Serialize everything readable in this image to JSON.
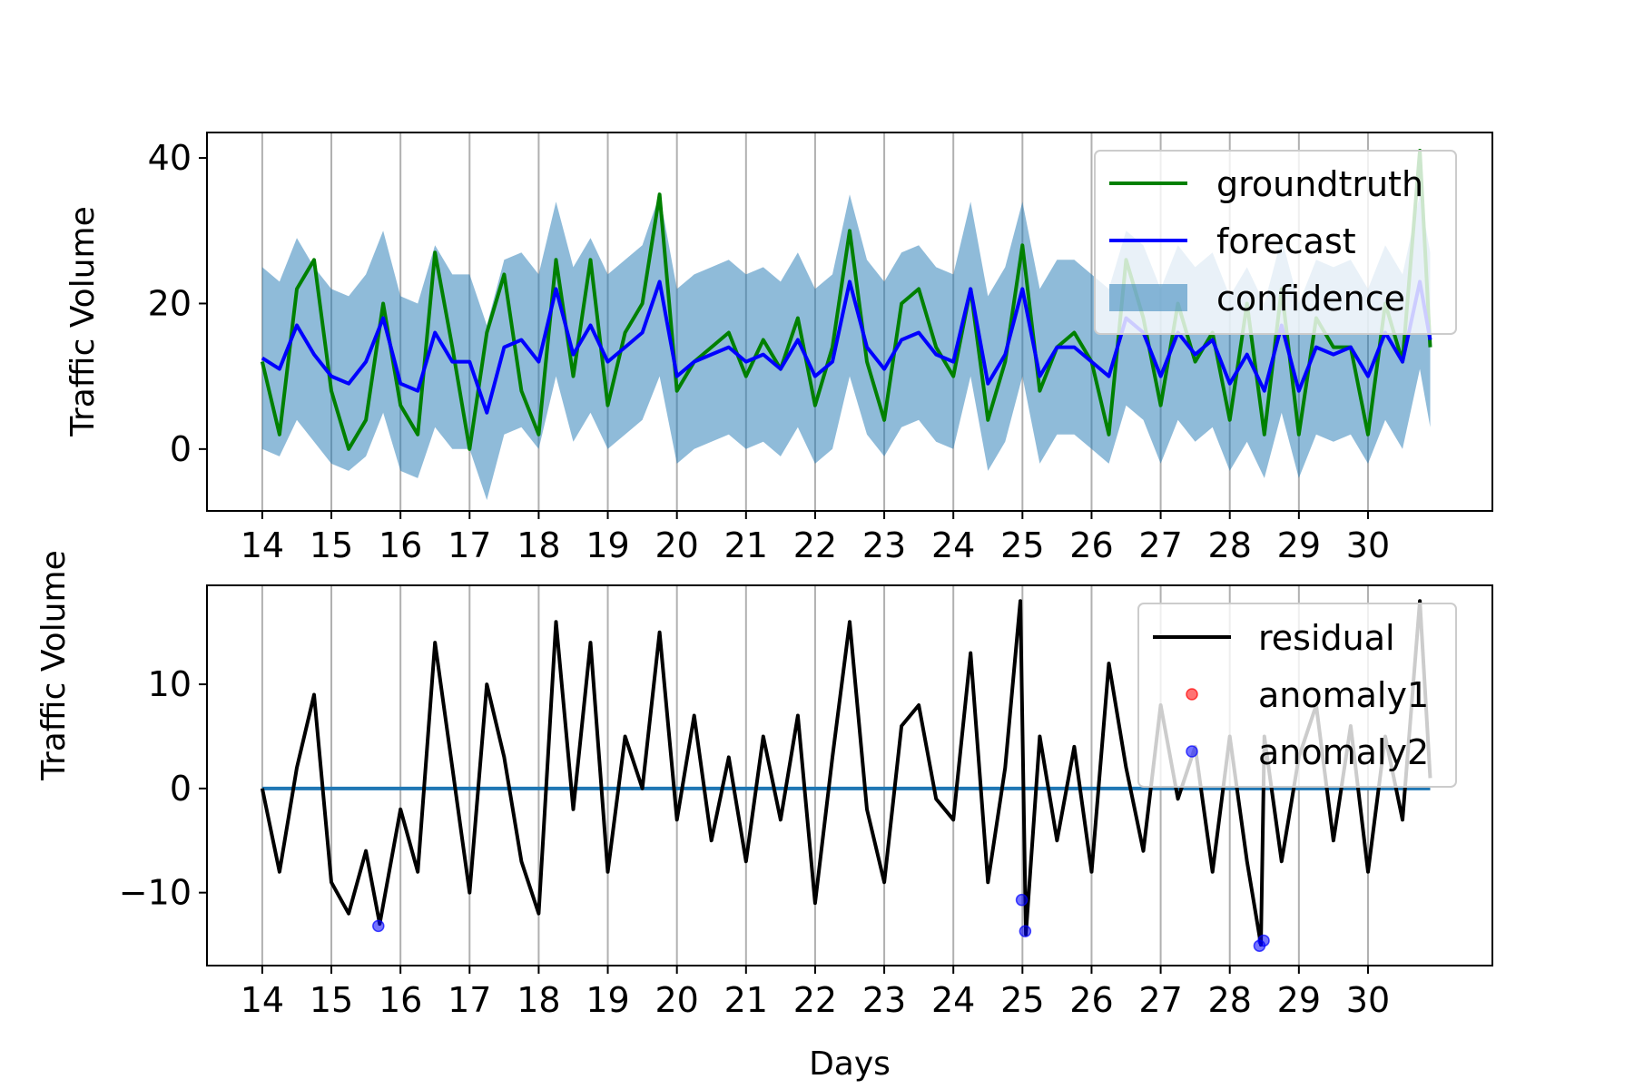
{
  "chart_data": [
    {
      "type": "line",
      "panel": "top",
      "ylabel": "Traffic Volume",
      "xlabel": "",
      "xlim": [
        13.2,
        31.8
      ],
      "ylim": [
        -8.5,
        43.5
      ],
      "x_ticks": [
        14,
        15,
        16,
        17,
        18,
        19,
        20,
        21,
        22,
        23,
        24,
        25,
        26,
        27,
        28,
        29,
        30
      ],
      "y_ticks": [
        0,
        20,
        40
      ],
      "grid": "x",
      "legend_position": "top-right",
      "legend": [
        "groundtruth",
        "forecast",
        "confidence"
      ],
      "colors": {
        "groundtruth": "#008000",
        "forecast": "#0000ff",
        "confidence": "#1f77b4"
      },
      "series": [
        {
          "name": "groundtruth",
          "x": [
            14.0,
            14.25,
            14.5,
            14.75,
            15.0,
            15.25,
            15.5,
            15.75,
            16.0,
            16.25,
            16.5,
            16.75,
            17.0,
            17.25,
            17.5,
            17.75,
            18.0,
            18.25,
            18.5,
            18.75,
            19.0,
            19.25,
            19.5,
            19.75,
            20.0,
            20.25,
            20.5,
            20.75,
            21.0,
            21.25,
            21.5,
            21.75,
            22.0,
            22.25,
            22.5,
            22.75,
            23.0,
            23.25,
            23.5,
            23.75,
            24.0,
            24.25,
            24.5,
            24.75,
            25.0,
            25.25,
            25.5,
            25.75,
            26.0,
            26.25,
            26.5,
            26.75,
            27.0,
            27.25,
            27.5,
            27.75,
            28.0,
            28.25,
            28.5,
            28.75,
            29.0,
            29.25,
            29.5,
            29.75,
            30.0,
            30.25,
            30.5,
            30.75,
            30.9
          ],
          "y": [
            12,
            2,
            22,
            26,
            8,
            0,
            4,
            20,
            6,
            2,
            27,
            14,
            0,
            16,
            24,
            8,
            2,
            26,
            10,
            26,
            6,
            16,
            20,
            35,
            8,
            12,
            14,
            16,
            10,
            15,
            11,
            18,
            6,
            14,
            30,
            12,
            4,
            20,
            22,
            14,
            10,
            22,
            4,
            12,
            28,
            8,
            14,
            16,
            12,
            2,
            26,
            18,
            6,
            20,
            12,
            16,
            4,
            20,
            2,
            22,
            2,
            18,
            14,
            14,
            2,
            20,
            12,
            41,
            14
          ]
        },
        {
          "name": "forecast",
          "x": [
            14.0,
            14.25,
            14.5,
            14.75,
            15.0,
            15.25,
            15.5,
            15.75,
            16.0,
            16.25,
            16.5,
            16.75,
            17.0,
            17.25,
            17.5,
            17.75,
            18.0,
            18.25,
            18.5,
            18.75,
            19.0,
            19.25,
            19.5,
            19.75,
            20.0,
            20.25,
            20.5,
            20.75,
            21.0,
            21.25,
            21.5,
            21.75,
            22.0,
            22.25,
            22.5,
            22.75,
            23.0,
            23.25,
            23.5,
            23.75,
            24.0,
            24.25,
            24.5,
            24.75,
            25.0,
            25.25,
            25.5,
            25.75,
            26.0,
            26.25,
            26.5,
            26.75,
            27.0,
            27.25,
            27.5,
            27.75,
            28.0,
            28.25,
            28.5,
            28.75,
            29.0,
            29.25,
            29.5,
            29.75,
            30.0,
            30.25,
            30.5,
            30.75,
            30.9
          ],
          "y": [
            12.5,
            11,
            17,
            13,
            10,
            9,
            12,
            18,
            9,
            8,
            16,
            12,
            12,
            5,
            14,
            15,
            12,
            22,
            13,
            17,
            12,
            14,
            16,
            23,
            10,
            12,
            13,
            14,
            12,
            13,
            11,
            15,
            10,
            12,
            23,
            14,
            11,
            15,
            16,
            13,
            12,
            22,
            9,
            13,
            22,
            10,
            14,
            14,
            12,
            10,
            18,
            16,
            10,
            16,
            13,
            15,
            9,
            13,
            8,
            17,
            8,
            14,
            13,
            14,
            10,
            16,
            12,
            23,
            15
          ]
        }
      ],
      "confidence": {
        "x": [
          14.0,
          14.25,
          14.5,
          14.75,
          15.0,
          15.25,
          15.5,
          15.75,
          16.0,
          16.25,
          16.5,
          16.75,
          17.0,
          17.25,
          17.5,
          17.75,
          18.0,
          18.25,
          18.5,
          18.75,
          19.0,
          19.25,
          19.5,
          19.75,
          20.0,
          20.25,
          20.5,
          20.75,
          21.0,
          21.25,
          21.5,
          21.75,
          22.0,
          22.25,
          22.5,
          22.75,
          23.0,
          23.25,
          23.5,
          23.75,
          24.0,
          24.25,
          24.5,
          24.75,
          25.0,
          25.25,
          25.5,
          25.75,
          26.0,
          26.25,
          26.5,
          26.75,
          27.0,
          27.25,
          27.5,
          27.75,
          28.0,
          28.25,
          28.5,
          28.75,
          29.0,
          29.25,
          29.5,
          29.75,
          30.0,
          30.25,
          30.5,
          30.75,
          30.9
        ],
        "lower": [
          0,
          -1,
          4,
          1,
          -2,
          -3,
          -1,
          5,
          -3,
          -4,
          3,
          0,
          0,
          -7,
          2,
          3,
          0,
          10,
          1,
          5,
          0,
          2,
          4,
          10,
          -2,
          0,
          1,
          2,
          0,
          1,
          -1,
          3,
          -2,
          0,
          10,
          2,
          -1,
          3,
          4,
          1,
          0,
          10,
          -3,
          1,
          10,
          -2,
          2,
          2,
          0,
          -2,
          6,
          4,
          -2,
          4,
          1,
          3,
          -3,
          1,
          -4,
          5,
          -4,
          2,
          1,
          2,
          -2,
          4,
          0,
          11,
          3
        ],
        "upper": [
          25,
          23,
          29,
          25,
          22,
          21,
          24,
          30,
          21,
          20,
          28,
          24,
          24,
          17,
          26,
          27,
          24,
          34,
          25,
          29,
          24,
          26,
          28,
          35,
          22,
          24,
          25,
          26,
          24,
          25,
          23,
          27,
          22,
          24,
          35,
          26,
          23,
          27,
          28,
          25,
          24,
          34,
          21,
          25,
          34,
          22,
          26,
          26,
          24,
          22,
          30,
          28,
          22,
          28,
          25,
          27,
          21,
          25,
          20,
          29,
          20,
          26,
          25,
          26,
          22,
          28,
          24,
          35,
          27
        ]
      }
    },
    {
      "type": "line",
      "panel": "bottom",
      "ylabel": "Traffic Volume",
      "xlabel": "Days",
      "xlim": [
        13.2,
        31.8
      ],
      "ylim": [
        -17,
        19.5
      ],
      "x_ticks": [
        14,
        15,
        16,
        17,
        18,
        19,
        20,
        21,
        22,
        23,
        24,
        25,
        26,
        27,
        28,
        29,
        30
      ],
      "y_ticks": [
        -10,
        0,
        10
      ],
      "y_tick_labels": [
        "−10",
        "0",
        "10"
      ],
      "grid": "x",
      "legend_position": "top-right",
      "legend": [
        "residual",
        "anomaly1",
        "anomaly2"
      ],
      "colors": {
        "residual": "#000000",
        "baseline": "#1f77b4",
        "anomaly1": "#ff0000",
        "anomaly2": "#0000ff"
      },
      "series": [
        {
          "name": "residual",
          "x": [
            14.0,
            14.25,
            14.5,
            14.75,
            15.0,
            15.25,
            15.5,
            15.7,
            16.0,
            16.25,
            16.5,
            16.75,
            17.0,
            17.25,
            17.5,
            17.75,
            18.0,
            18.25,
            18.5,
            18.75,
            19.0,
            19.25,
            19.5,
            19.75,
            20.0,
            20.25,
            20.5,
            20.75,
            21.0,
            21.25,
            21.5,
            21.75,
            22.0,
            22.25,
            22.5,
            22.75,
            23.0,
            23.25,
            23.5,
            23.75,
            24.0,
            24.25,
            24.5,
            24.75,
            24.97,
            25.05,
            25.25,
            25.5,
            25.75,
            26.0,
            26.25,
            26.5,
            26.75,
            27.0,
            27.25,
            27.5,
            27.75,
            28.0,
            28.25,
            28.45,
            28.5,
            28.75,
            29.0,
            29.25,
            29.5,
            29.75,
            30.0,
            30.25,
            30.5,
            30.75,
            30.9
          ],
          "y": [
            0,
            -8,
            2,
            9,
            -9,
            -12,
            -6,
            -13,
            -2,
            -8,
            14,
            2,
            -10,
            10,
            3,
            -7,
            -12,
            16,
            -2,
            14,
            -8,
            5,
            0,
            15,
            -3,
            7,
            -5,
            3,
            -7,
            5,
            -3,
            7,
            -11,
            3,
            16,
            -2,
            -9,
            6,
            8,
            -1,
            -3,
            13,
            -9,
            2,
            18,
            -14,
            5,
            -5,
            4,
            -8,
            12,
            2,
            -6,
            8,
            -1,
            4,
            -8,
            5,
            -7,
            -15,
            5,
            -7,
            3,
            8,
            -5,
            6,
            -8,
            5,
            -3,
            18,
            1
          ]
        }
      ],
      "baseline": {
        "y": 0,
        "x": [
          14.0,
          30.9
        ]
      },
      "anomaly1": {
        "x": [],
        "y": []
      },
      "anomaly2": {
        "x": [
          15.68,
          24.99,
          25.04,
          28.43,
          28.49
        ],
        "y": [
          -13.2,
          -10.7,
          -13.7,
          -15.1,
          -14.6
        ]
      }
    }
  ]
}
